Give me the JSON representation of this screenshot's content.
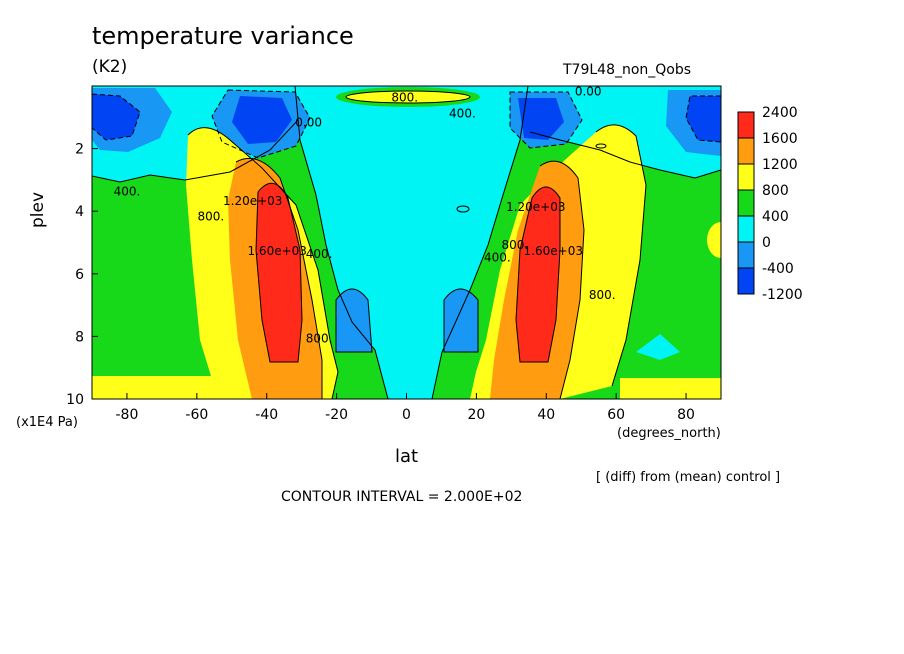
{
  "chart_data": {
    "type": "contour",
    "title": "temperature variance",
    "units": "(K2)",
    "experiment": "T79L48_non_Qobs",
    "xlabel": "lat",
    "ylabel": "plev",
    "x_unit": "(degrees_north)",
    "y_unit": "(x1E4 Pa)",
    "xlim": [
      -90,
      90
    ],
    "ylim": [
      10,
      0
    ],
    "x_ticks": [
      "-80",
      "-60",
      "-40",
      "-20",
      "0",
      "20",
      "40",
      "60",
      "80"
    ],
    "x_tick_values": [
      -80,
      -60,
      -40,
      -20,
      0,
      20,
      40,
      60,
      80
    ],
    "y_ticks": [
      "2",
      "4",
      "6",
      "8",
      "10"
    ],
    "y_tick_values": [
      2,
      4,
      6,
      8,
      10
    ],
    "contour_interval_text": "CONTOUR INTERVAL = 2.000E+02",
    "note": "[ (diff) from (mean) control ]",
    "contour_labels": [
      {
        "text": "800.",
        "lat": -0.5,
        "plev": 0.5
      },
      {
        "text": "400.",
        "lat": 16,
        "plev": 1.0
      },
      {
        "text": "0.00",
        "lat": 52,
        "plev": 0.3
      },
      {
        "text": "0.00",
        "lat": -28,
        "plev": 1.3
      },
      {
        "text": "400.",
        "lat": -80,
        "plev": 3.5
      },
      {
        "text": "800.",
        "lat": -56,
        "plev": 4.3
      },
      {
        "text": "1.20e+03",
        "lat": -44,
        "plev": 3.8
      },
      {
        "text": "1.60e+03",
        "lat": -37,
        "plev": 5.4
      },
      {
        "text": "400.",
        "lat": -25,
        "plev": 5.5
      },
      {
        "text": "800.",
        "lat": -25,
        "plev": 8.2
      },
      {
        "text": "400.",
        "lat": 26,
        "plev": 5.6
      },
      {
        "text": "800.",
        "lat": 31,
        "plev": 5.2
      },
      {
        "text": "1.20e+03",
        "lat": 37,
        "plev": 4.0
      },
      {
        "text": "1.60e+03",
        "lat": 42,
        "plev": 5.4
      },
      {
        "text": "800.",
        "lat": 56,
        "plev": 6.8
      }
    ],
    "colorbar": {
      "labels": [
        "2400",
        "1600",
        "1200",
        "800",
        "400",
        "0",
        "-400",
        "-1200"
      ],
      "colors": [
        "#ff2a1a",
        "#ff9c10",
        "#ffff1a",
        "#18d81a",
        "#00f4f4",
        "#1898f4",
        "#0044f4"
      ]
    }
  }
}
